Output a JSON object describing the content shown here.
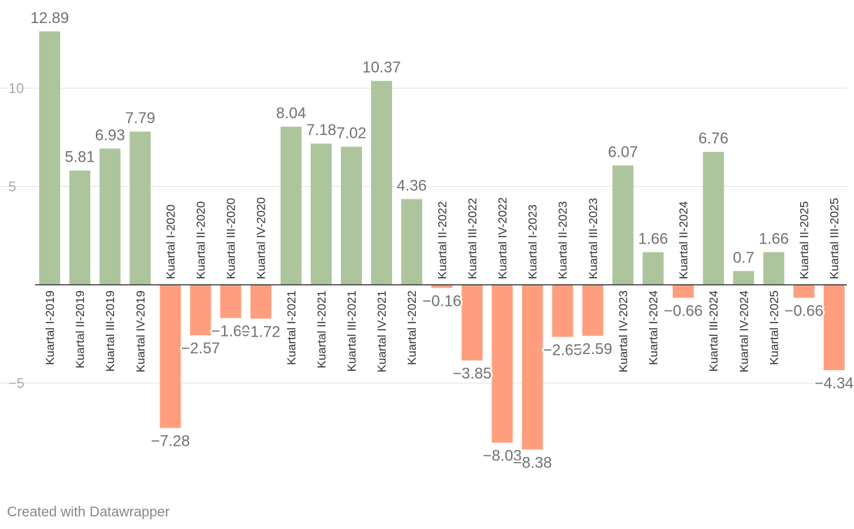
{
  "chart_data": {
    "type": "bar",
    "categories": [
      "Kuartal I-2019",
      "Kuartal II-2019",
      "Kuartal III-2019",
      "Kuartal IV-2019",
      "Kuartal I-2020",
      "Kuartal II-2020",
      "Kuartal III-2020",
      "Kuartal IV-2020",
      "Kuartal I-2021",
      "Kuartal II-2021",
      "Kuartal III-2021",
      "Kuartal IV-2021",
      "Kuartal I-2022",
      "Kuartal II-2022",
      "Kuartal III-2022",
      "Kuartal IV-2022",
      "Kuartal I-2023",
      "Kuartal II-2023",
      "Kuartal III-2023",
      "Kuartal IV-2023",
      "Kuartal I-2024",
      "Kuartal II-2024",
      "Kuartal III-2024",
      "Kuartal IV-2024",
      "Kuartal I-2025",
      "Kuartal II-2025",
      "Kuartal III-2025"
    ],
    "values": [
      12.89,
      5.81,
      6.93,
      7.79,
      -7.28,
      -2.57,
      -1.69,
      -1.72,
      8.04,
      7.18,
      7.02,
      10.37,
      4.36,
      -0.16,
      -3.85,
      -8.03,
      -8.38,
      -2.65,
      -2.59,
      6.07,
      1.66,
      -0.66,
      6.76,
      0.7,
      1.66,
      -0.66,
      -4.34
    ],
    "value_labels": [
      "12.89",
      "5.81",
      "6.93",
      "7.79",
      "−7.28",
      "−2.57",
      "−1.69",
      "−1.72",
      "8.04",
      "7.18",
      "7.02",
      "10.37",
      "4.36",
      "−0.16",
      "−3.85",
      "−8.03",
      "−8.38",
      "−2.65",
      "−2.59",
      "6.07",
      "1.66",
      "−0.66",
      "6.76",
      "0.7",
      "1.66",
      "−0.66",
      "−4.34"
    ],
    "yticks": [
      10,
      5,
      -5
    ],
    "ytick_labels": [
      "10",
      "5",
      "−5"
    ],
    "ylim": [
      -10,
      14.4
    ],
    "title": "",
    "xlabel": "",
    "ylabel": "",
    "grid": true,
    "positive_color": "#adc59c",
    "negative_color": "#ff9e7e"
  },
  "footer": {
    "credit": "Created with Datawrapper"
  }
}
